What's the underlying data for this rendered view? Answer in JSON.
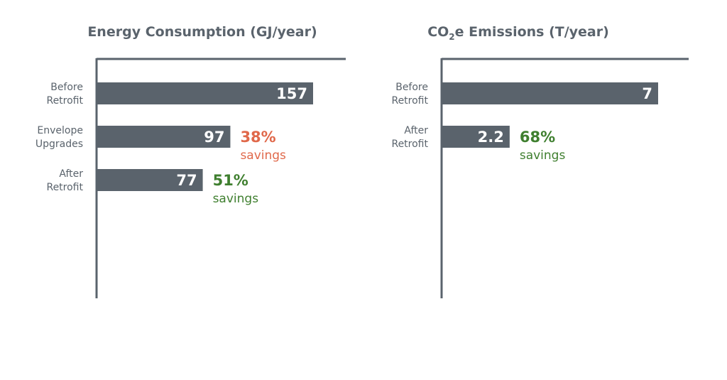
{
  "colors": {
    "bar": "#5a636c",
    "axis": "#5a636c",
    "text": "#5a636c",
    "orange": "#e0684a",
    "green": "#3f7f2f"
  },
  "chart_data": [
    {
      "type": "bar",
      "orientation": "horizontal",
      "title": "Energy Consumption (GJ/year)",
      "categories": [
        [
          "Before",
          "Retrofit"
        ],
        [
          "Envelope",
          "Upgrades"
        ],
        [
          "After",
          "Retrofit"
        ]
      ],
      "values": [
        157,
        97,
        77
      ],
      "value_labels": [
        "157",
        "97",
        "77"
      ],
      "annotations": [
        null,
        {
          "percent": "38%",
          "text": "savings",
          "color": "orange"
        },
        {
          "percent": "51%",
          "text": "savings",
          "color": "green"
        }
      ],
      "xlim": [
        0,
        180
      ],
      "grid": false
    },
    {
      "type": "bar",
      "orientation": "horizontal",
      "title": "CO₂e Emissions (T/year)",
      "categories": [
        [
          "Before",
          "Retrofit"
        ],
        [
          "After",
          "Retrofit"
        ]
      ],
      "values": [
        7,
        2.2
      ],
      "value_labels": [
        "7",
        "2.2"
      ],
      "annotations": [
        null,
        {
          "percent": "68%",
          "text": "savings",
          "color": "green"
        }
      ],
      "xlim": [
        0,
        8
      ],
      "grid": false
    }
  ]
}
